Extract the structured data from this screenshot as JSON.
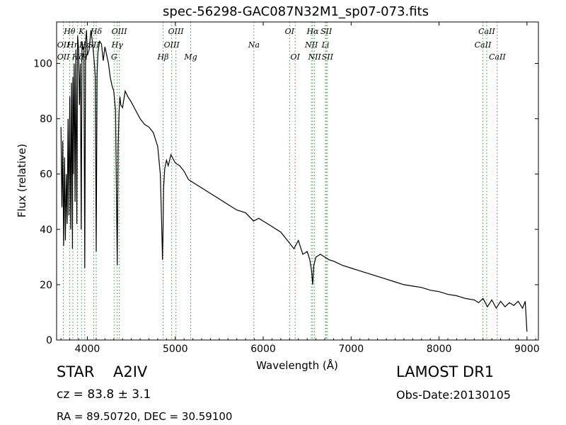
{
  "chart_data": {
    "type": "line",
    "title": "spec-56298-GAC087N32M1_sp07-073.fits",
    "xlabel": "Wavelength (Å)",
    "ylabel": "Flux (relative)",
    "xlim": [
      3650,
      9130
    ],
    "ylim": [
      0,
      115
    ],
    "xticks": [
      4000,
      5000,
      6000,
      7000,
      8000,
      9000
    ],
    "yticks": [
      0,
      20,
      40,
      60,
      80,
      100
    ],
    "grid": false,
    "line_color": "#000000",
    "marker_color": "#2ca02c",
    "series": [
      {
        "x": [
          3700,
          3710,
          3720,
          3730,
          3740,
          3750,
          3760,
          3770,
          3780,
          3790,
          3800,
          3810,
          3820,
          3830,
          3835,
          3840,
          3850,
          3860,
          3870,
          3880,
          3889,
          3900,
          3910,
          3920,
          3930,
          3940,
          3950,
          3960,
          3970,
          3980,
          3990,
          4000,
          4020,
          4040,
          4060,
          4080,
          4090,
          4101,
          4110,
          4120,
          4140,
          4160,
          4180,
          4200,
          4220,
          4240,
          4260,
          4280,
          4300,
          4320,
          4340,
          4350,
          4360,
          4370,
          4380,
          4400,
          4430,
          4460,
          4500,
          4550,
          4600,
          4650,
          4700,
          4750,
          4800,
          4830,
          4845,
          4855,
          4861,
          4867,
          4880,
          4900,
          4920,
          4950,
          5000,
          5050,
          5100,
          5150,
          5200,
          5300,
          5400,
          5500,
          5600,
          5700,
          5800,
          5890,
          5950,
          6000,
          6100,
          6200,
          6300,
          6350,
          6400,
          6450,
          6500,
          6530,
          6550,
          6563,
          6575,
          6600,
          6650,
          6700,
          6750,
          6800,
          6900,
          7000,
          7100,
          7200,
          7300,
          7400,
          7500,
          7600,
          7700,
          7800,
          7900,
          8000,
          8100,
          8200,
          8300,
          8400,
          8450,
          8500,
          8550,
          8600,
          8650,
          8700,
          8750,
          8800,
          8850,
          8900,
          8950,
          8980,
          9000
        ],
        "y": [
          77,
          48,
          72,
          34,
          66,
          36,
          60,
          42,
          80,
          45,
          88,
          40,
          93,
          33,
          95,
          60,
          100,
          50,
          105,
          42,
          110,
          105,
          85,
          100,
          40,
          108,
          105,
          106,
          26,
          108,
          112,
          103,
          105,
          112,
          107,
          100,
          95,
          32,
          96,
          104,
          108,
          107,
          101,
          106,
          103,
          100,
          95,
          92,
          90,
          83,
          27,
          70,
          82,
          88,
          85,
          84,
          90,
          88,
          86,
          83,
          80,
          78,
          77,
          75,
          70,
          60,
          42,
          29,
          40,
          55,
          62,
          65,
          63,
          67,
          64,
          63,
          61,
          58,
          57,
          55,
          53,
          51,
          49,
          47,
          46,
          43,
          44,
          43,
          41,
          39,
          35,
          33,
          36,
          31,
          32,
          29,
          25,
          20,
          27,
          30,
          31,
          30,
          29,
          28.5,
          27,
          26,
          25,
          24,
          23,
          22,
          21,
          20,
          19.5,
          19,
          18,
          17.5,
          16.5,
          16,
          15,
          14.5,
          13.5,
          15,
          12,
          14.5,
          11.5,
          14,
          12,
          13.5,
          12.5,
          14,
          11.5,
          14,
          3
        ]
      }
    ],
    "lines": [
      {
        "label": "Hθ",
        "wavelength": 3798,
        "row": 0
      },
      {
        "label": "OII",
        "wavelength": 3727,
        "row": 1
      },
      {
        "label": "Hη",
        "wavelength": 3835,
        "row": 1
      },
      {
        "label": "OII",
        "wavelength": 3727,
        "row": 2
      },
      {
        "label": "Hζ",
        "wavelength": 3889,
        "row": 2
      },
      {
        "label": "K",
        "wavelength": 3934,
        "row": 0
      },
      {
        "label": "Hε",
        "wavelength": 3970,
        "row": 1
      },
      {
        "label": "H",
        "wavelength": 3968,
        "row": 2
      },
      {
        "label": "Hδ",
        "wavelength": 4101,
        "row": 0
      },
      {
        "label": "SII",
        "wavelength": 4072,
        "row": 1
      },
      {
        "label": "OIII",
        "wavelength": 4363,
        "row": 0
      },
      {
        "label": "Hγ",
        "wavelength": 4340,
        "row": 1
      },
      {
        "label": "G",
        "wavelength": 4304,
        "row": 2
      },
      {
        "label": "OIII",
        "wavelength": 5007,
        "row": 0
      },
      {
        "label": "OIII",
        "wavelength": 4959,
        "row": 1
      },
      {
        "label": "Hβ",
        "wavelength": 4861,
        "row": 2
      },
      {
        "label": "Mg",
        "wavelength": 5175,
        "row": 2
      },
      {
        "label": "Na",
        "wavelength": 5894,
        "row": 1
      },
      {
        "label": "OI",
        "wavelength": 6300,
        "row": 0
      },
      {
        "label": "OI",
        "wavelength": 6363,
        "row": 2
      },
      {
        "label": "Hα",
        "wavelength": 6563,
        "row": 0
      },
      {
        "label": "SII",
        "wavelength": 6717,
        "row": 0
      },
      {
        "label": "NII",
        "wavelength": 6548,
        "row": 1
      },
      {
        "label": "Li",
        "wavelength": 6708,
        "row": 1
      },
      {
        "label": "NII",
        "wavelength": 6584,
        "row": 2
      },
      {
        "label": "SII",
        "wavelength": 6731,
        "row": 2
      },
      {
        "label": "CaII",
        "wavelength": 8542,
        "row": 0
      },
      {
        "label": "CaII",
        "wavelength": 8498,
        "row": 1
      },
      {
        "label": "CaII",
        "wavelength": 8662,
        "row": 2
      }
    ]
  },
  "footer": {
    "object_class": "STAR",
    "subclass": "A2IV",
    "redshift": "cz = 83.8 ± 3.1",
    "coords": "RA = 89.50720, DEC = 30.59100",
    "survey": "LAMOST DR1",
    "obs_date": "Obs-Date:20130105"
  }
}
